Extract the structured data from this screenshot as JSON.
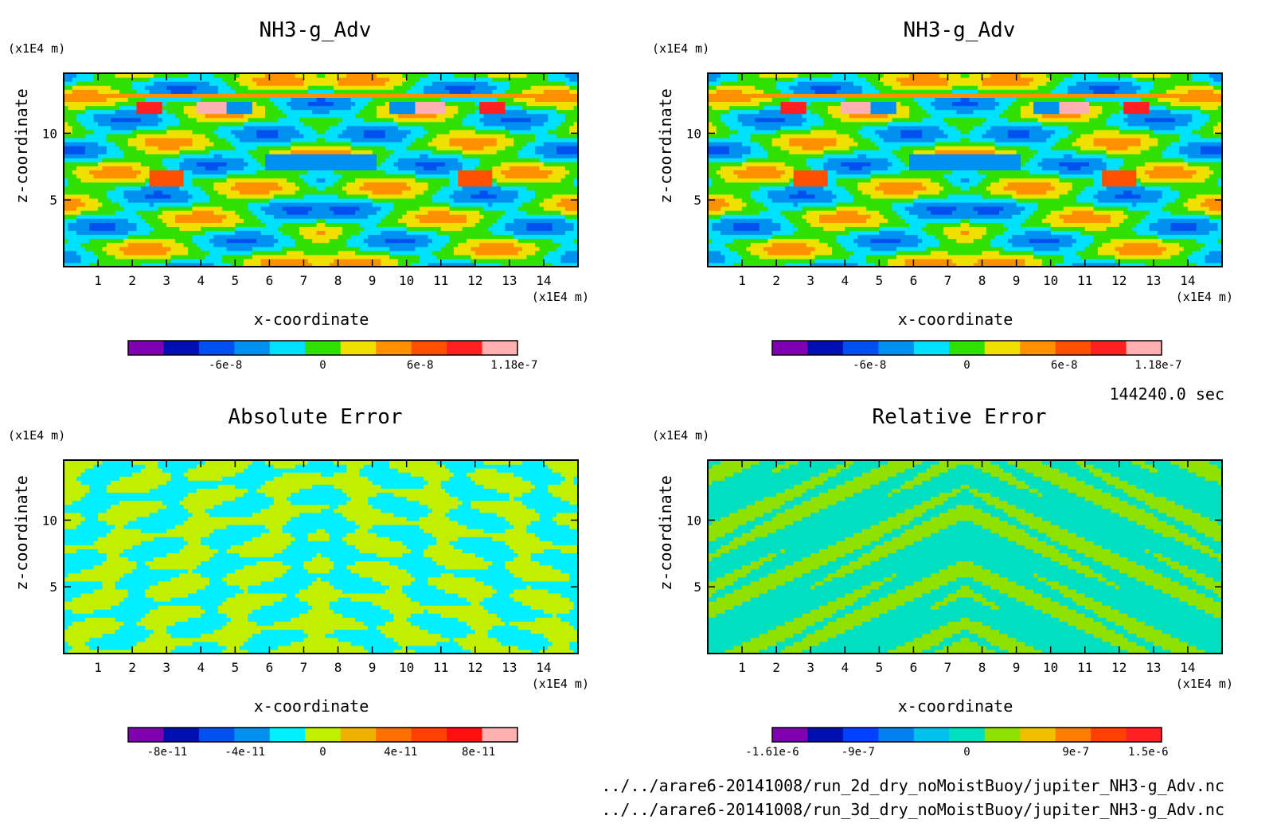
{
  "footer": {
    "time": "144240.0 sec",
    "file1": "../../arare6-20141008/run_2d_dry_noMoistBuoy/jupiter_NH3-g_Adv.nc",
    "file2": "../../arare6-20141008/run_3d_dry_noMoistBuoy/jupiter_NH3-g_Adv.nc"
  },
  "chart_data": [
    {
      "type": "heatmap",
      "title": "NH3-g_Adv",
      "xlabel": "x-coordinate",
      "ylabel": "z-coordinate",
      "x_unit": "(x1E4 m)",
      "y_unit": "(x1E4 m)",
      "xlim": [
        0,
        15
      ],
      "ylim": [
        0,
        14.5
      ],
      "xticks": [
        "1",
        "2",
        "3",
        "4",
        "5",
        "6",
        "7",
        "8",
        "9",
        "10",
        "11",
        "12",
        "13",
        "14"
      ],
      "yticks": [
        "5",
        "10"
      ],
      "pattern": "field",
      "colorbar": {
        "colors": [
          "#8000b0",
          "#0010b0",
          "#0050f0",
          "#0090f0",
          "#00e0ff",
          "#30e000",
          "#f0e000",
          "#ff9000",
          "#ff5000",
          "#ff2020",
          "#ffb0b0"
        ],
        "tick_labels": [
          {
            "label": "-6e-8",
            "value": -6e-08
          },
          {
            "label": "0",
            "value": 0
          },
          {
            "label": "6e-8",
            "value": 6e-08
          },
          {
            "label": "1.18e-7",
            "value": 1.18e-07
          }
        ],
        "range": [
          -1.2e-07,
          1.2e-07
        ]
      }
    },
    {
      "type": "heatmap",
      "title": "NH3-g_Adv",
      "xlabel": "x-coordinate",
      "ylabel": "z-coordinate",
      "x_unit": "(x1E4 m)",
      "y_unit": "(x1E4 m)",
      "xlim": [
        0,
        15
      ],
      "ylim": [
        0,
        14.5
      ],
      "xticks": [
        "1",
        "2",
        "3",
        "4",
        "5",
        "6",
        "7",
        "8",
        "9",
        "10",
        "11",
        "12",
        "13",
        "14"
      ],
      "yticks": [
        "5",
        "10"
      ],
      "pattern": "field",
      "colorbar": {
        "colors": [
          "#8000b0",
          "#0010b0",
          "#0050f0",
          "#0090f0",
          "#00e0ff",
          "#30e000",
          "#f0e000",
          "#ff9000",
          "#ff5000",
          "#ff2020",
          "#ffb0b0"
        ],
        "tick_labels": [
          {
            "label": "-6e-8",
            "value": -6e-08
          },
          {
            "label": "0",
            "value": 0
          },
          {
            "label": "6e-8",
            "value": 6e-08
          },
          {
            "label": "1.18e-7",
            "value": 1.18e-07
          }
        ],
        "range": [
          -1.2e-07,
          1.2e-07
        ]
      }
    },
    {
      "type": "heatmap",
      "title": "Absolute Error",
      "xlabel": "x-coordinate",
      "ylabel": "z-coordinate",
      "x_unit": "(x1E4 m)",
      "y_unit": "(x1E4 m)",
      "xlim": [
        0,
        15
      ],
      "ylim": [
        0,
        14.5
      ],
      "xticks": [
        "1",
        "2",
        "3",
        "4",
        "5",
        "6",
        "7",
        "8",
        "9",
        "10",
        "11",
        "12",
        "13",
        "14"
      ],
      "yticks": [
        "5",
        "10"
      ],
      "pattern": "abs",
      "colorbar": {
        "colors": [
          "#8000b0",
          "#0010b0",
          "#0050f0",
          "#0090f0",
          "#00f0ff",
          "#c0f000",
          "#f0b000",
          "#ff7000",
          "#ff4000",
          "#ff1010",
          "#ffb0b0"
        ],
        "tick_labels": [
          {
            "label": "-8e-11",
            "value": -8e-11
          },
          {
            "label": "-4e-11",
            "value": -4e-11
          },
          {
            "label": "0",
            "value": 0
          },
          {
            "label": "4e-11",
            "value": 4e-11
          },
          {
            "label": "8e-11",
            "value": 8e-11
          }
        ],
        "range": [
          -1e-10,
          1e-10
        ]
      }
    },
    {
      "type": "heatmap",
      "title": "Relative Error",
      "xlabel": "x-coordinate",
      "ylabel": "z-coordinate",
      "x_unit": "(x1E4 m)",
      "y_unit": "(x1E4 m)",
      "xlim": [
        0,
        15
      ],
      "ylim": [
        0,
        14.5
      ],
      "xticks": [
        "1",
        "2",
        "3",
        "4",
        "5",
        "6",
        "7",
        "8",
        "9",
        "10",
        "11",
        "12",
        "13",
        "14"
      ],
      "yticks": [
        "5",
        "10"
      ],
      "pattern": "rel",
      "colorbar": {
        "colors": [
          "#8000b0",
          "#0010b0",
          "#0040ff",
          "#0080f0",
          "#00c0f0",
          "#00e0c0",
          "#90e000",
          "#f0c000",
          "#ff8000",
          "#ff4000",
          "#ff2020"
        ],
        "tick_labels": [
          {
            "label": "-1.61e-6",
            "value": -1.61e-06
          },
          {
            "label": "-9e-7",
            "value": -9e-07
          },
          {
            "label": "0",
            "value": 0
          },
          {
            "label": "9e-7",
            "value": 9e-07
          },
          {
            "label": "1.5e-6",
            "value": 1.5e-06
          }
        ],
        "range": [
          -1.61e-06,
          1.61e-06
        ]
      }
    }
  ]
}
